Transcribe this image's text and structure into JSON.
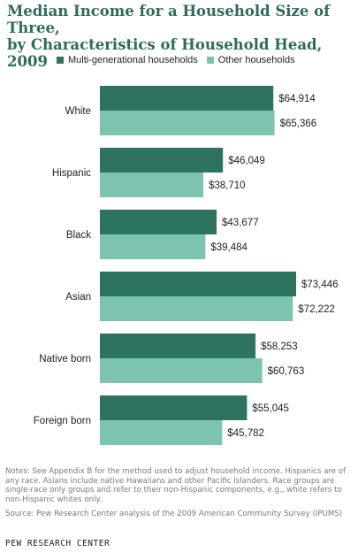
{
  "header": {
    "title_line1": "Median Income for a Household Size of Three,",
    "title_line2": "by Characteristics of Household Head, 2009"
  },
  "colors": {
    "multi": "#2e7262",
    "other": "#7cc4b0"
  },
  "notes": {
    "note": "Notes: See Appendix B for the method used to adjust household income. Hispanics are of any race. Asians include native Hawaiians and other Pacific Islanders. Race groups are single-race only groups and refer to their non-Hispanic components, e.g., white refers to non-Hispanic whites only.",
    "source": "Source: Pew Research Center analysis of the 2009 American Community Survey (IPUMS)"
  },
  "footer": "PEW RESEARCH CENTER",
  "chart_data": {
    "type": "bar",
    "orientation": "horizontal",
    "title": "Median Income for a Household Size of Three, by Characteristics of Household Head, 2009",
    "categories": [
      "White",
      "Hispanic",
      "Black",
      "Asian",
      "Native born",
      "Foreign born"
    ],
    "series": [
      {
        "name": "Multi-generational households",
        "values": [
          64914,
          46049,
          43677,
          73446,
          58253,
          55045
        ],
        "labels": [
          "$64,914",
          "$46,049",
          "$43,677",
          "$73,446",
          "$58,253",
          "$55,045"
        ]
      },
      {
        "name": "Other households",
        "values": [
          65366,
          38710,
          39484,
          72222,
          60763,
          45782
        ],
        "labels": [
          "$65,366",
          "$38,710",
          "$39,484",
          "$72,222",
          "$60,763",
          "$45,782"
        ]
      }
    ],
    "xlim": [
      0,
      80000
    ],
    "legend_position": "top",
    "grid": false,
    "data_labels": true
  }
}
